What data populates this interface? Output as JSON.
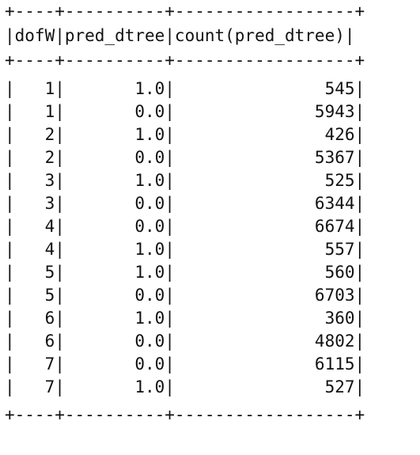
{
  "table": {
    "border": "+----+----------+------------------+",
    "header": "|dofW|pred_dtree|count(pred_dtree)|",
    "columns": [
      "dofW",
      "pred_dtree",
      "count(pred_dtree)"
    ],
    "rows": [
      [
        "1",
        "1.0",
        "545"
      ],
      [
        "1",
        "0.0",
        "5943"
      ],
      [
        "2",
        "1.0",
        "426"
      ],
      [
        "2",
        "0.0",
        "5367"
      ],
      [
        "3",
        "1.0",
        "525"
      ],
      [
        "3",
        "0.0",
        "6344"
      ],
      [
        "4",
        "0.0",
        "6674"
      ],
      [
        "4",
        "1.0",
        "557"
      ],
      [
        "5",
        "1.0",
        "560"
      ],
      [
        "5",
        "0.0",
        "6703"
      ],
      [
        "6",
        "1.0",
        "360"
      ],
      [
        "6",
        "0.0",
        "4802"
      ],
      [
        "7",
        "0.0",
        "6115"
      ],
      [
        "7",
        "1.0",
        "527"
      ]
    ],
    "row_lines": [
      "|   1|       1.0|               545|",
      "|   1|       0.0|              5943|",
      "|   2|       1.0|               426|",
      "|   2|       0.0|              5367|",
      "|   3|       1.0|               525|",
      "|   3|       0.0|              6344|",
      "|   4|       0.0|              6674|",
      "|   4|       1.0|               557|",
      "|   5|       1.0|               560|",
      "|   5|       0.0|              6703|",
      "|   6|       1.0|               360|",
      "|   6|       0.0|              4802|",
      "|   7|       0.0|              6115|",
      "|   7|       1.0|               527|"
    ]
  }
}
